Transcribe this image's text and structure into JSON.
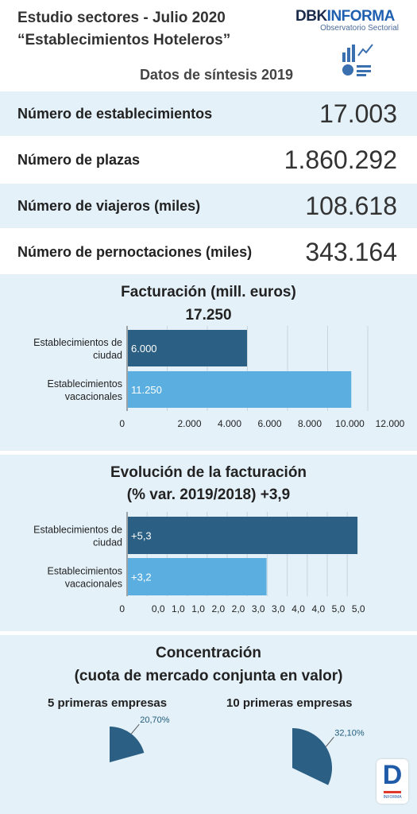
{
  "header": {
    "title_line1": "Estudio sectores - Julio 2020",
    "title_line2": "“Establecimientos Hoteleros”",
    "subtitle": "Datos de síntesis 2019",
    "logo_text_a": "DBK",
    "logo_text_b": "INFORMA",
    "logo_tagline": "Observatorio Sectorial",
    "logo_icon": "chart-icon"
  },
  "stats": [
    {
      "label": "Número de establecimientos",
      "value": "17.003"
    },
    {
      "label": "Número de plazas",
      "value": "1.860.292"
    },
    {
      "label": "Número de viajeros (miles)",
      "value": "108.618"
    },
    {
      "label": "Número de pernoctaciones (miles)",
      "value": "343.164"
    }
  ],
  "chart_data": [
    {
      "type": "bar",
      "orientation": "horizontal",
      "title": "Facturación (mill. euros)",
      "subtitle": "17.250",
      "categories": [
        "Establecimientos de ciudad",
        "Establecimientos vacacionales"
      ],
      "values": [
        6000,
        11250
      ],
      "value_labels": [
        "6.000",
        "11.250"
      ],
      "colors": [
        "#2b5f83",
        "#5aafe0"
      ],
      "xlim": [
        0,
        12000
      ],
      "ticks": [
        0,
        2000,
        4000,
        6000,
        8000,
        10000,
        12000
      ],
      "tick_labels": [
        "0",
        "2.000",
        "4.000",
        "6.000",
        "8.000",
        "10.000",
        "12.000"
      ],
      "grid": true
    },
    {
      "type": "bar",
      "orientation": "horizontal",
      "title_line1": "Evolución de la facturación",
      "title_line2": "(% var. 2019/2018) +3,9",
      "categories": [
        "Establecimientos de ciudad",
        "Establecimientos vacacionales"
      ],
      "values": [
        5.3,
        3.2
      ],
      "value_labels": [
        "+5,3",
        "+3,2"
      ],
      "colors": [
        "#2b5f83",
        "#5aafe0"
      ],
      "xlim": [
        0,
        5.5
      ],
      "tick_labels": [
        "0",
        "0,0",
        "1,0",
        "1,0",
        "2,0",
        "2,0",
        "3,0",
        "3,0",
        "4,0",
        "4,0",
        "5,0",
        "5,0"
      ],
      "grid": true
    },
    {
      "type": "pie",
      "title_line1": "Concentración",
      "title_line2": "(cuota de mercado conjunta en valor)",
      "pies": [
        {
          "label": "5 primeras empresas",
          "value": 20.7,
          "value_label": "20,70%",
          "color": "#2b5f83"
        },
        {
          "label": "10 primeras empresas",
          "value": 32.1,
          "value_label": "32,10%",
          "color": "#2b5f83"
        }
      ]
    }
  ],
  "footer": {
    "logo_letter": "D",
    "logo_text": "INFORMA",
    "logo_icon": "informa-logo-icon"
  }
}
